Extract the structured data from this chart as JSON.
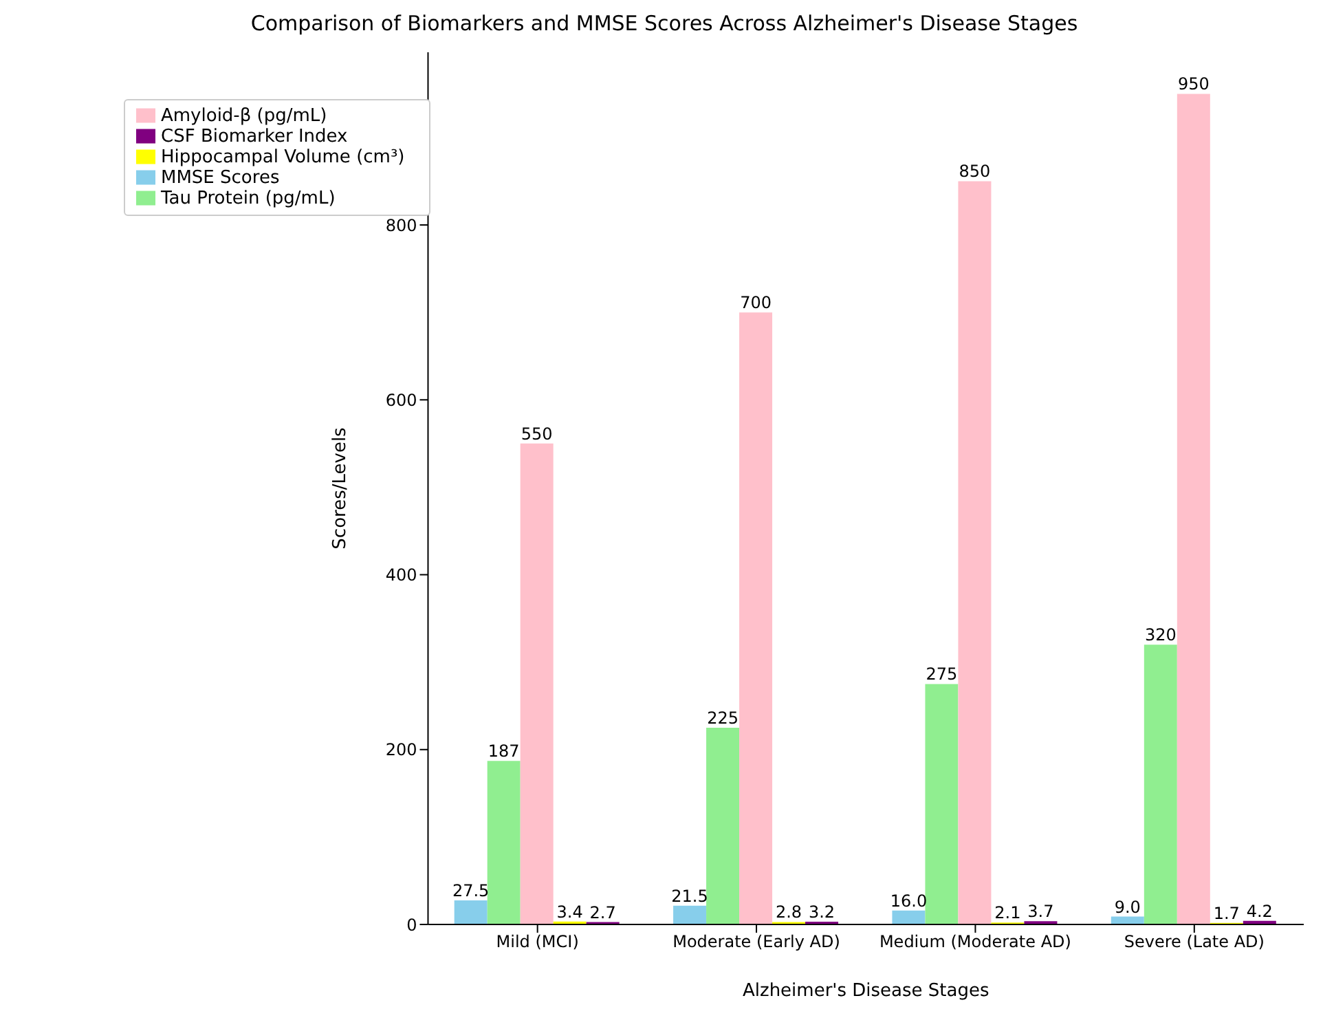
{
  "chart_data": {
    "type": "bar",
    "title": "Comparison of Biomarkers and MMSE Scores Across Alzheimer's Disease Stages",
    "xlabel": "Alzheimer's Disease Stages",
    "ylabel": "Scores/Levels",
    "categories": [
      "Mild (MCI)",
      "Moderate (Early AD)",
      "Medium (Moderate AD)",
      "Severe (Late AD)"
    ],
    "series": [
      {
        "name": "MMSE Scores",
        "color": "#87ceeb",
        "values": [
          27.5,
          21.5,
          16.0,
          9.0
        ],
        "value_labels": [
          "27.5",
          "21.5",
          "16.0",
          "9.0"
        ]
      },
      {
        "name": "Tau Protein (pg/mL)",
        "color": "#90ee90",
        "values": [
          187,
          225,
          275,
          320
        ],
        "value_labels": [
          "187",
          "225",
          "275",
          "320"
        ]
      },
      {
        "name": "Amyloid-β (pg/mL)",
        "color": "#ffc0cb",
        "values": [
          550,
          700,
          850,
          950
        ],
        "value_labels": [
          "550",
          "700",
          "850",
          "950"
        ]
      },
      {
        "name": "Hippocampal Volume (cm³)",
        "color": "#ffff00",
        "values": [
          3.4,
          2.8,
          2.1,
          1.7
        ],
        "value_labels": [
          "3.4",
          "2.8",
          "2.1",
          "1.7"
        ]
      },
      {
        "name": "CSF Biomarker Index",
        "color": "#800080",
        "values": [
          2.7,
          3.2,
          3.7,
          4.2
        ],
        "value_labels": [
          "2.7",
          "3.2",
          "3.7",
          "4.2"
        ]
      }
    ],
    "ylim": [
      0,
      997.5
    ],
    "yticks": [
      0,
      200,
      400,
      600,
      800
    ],
    "grid": false,
    "legend": "top left"
  }
}
